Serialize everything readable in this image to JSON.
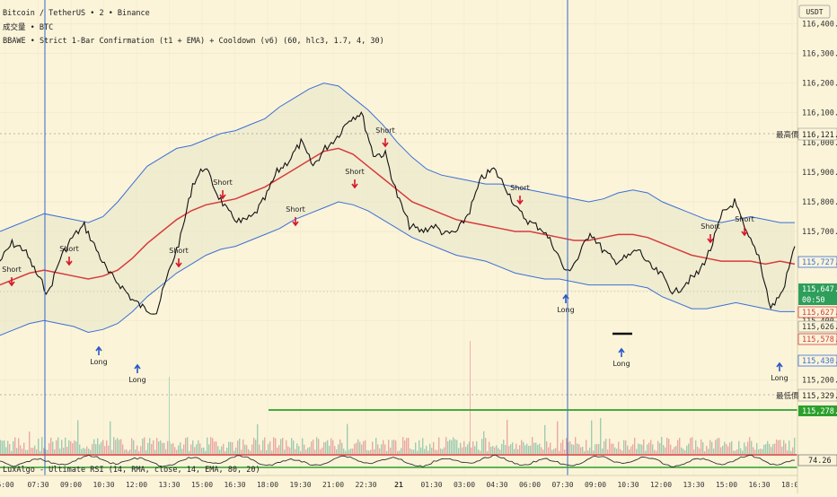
{
  "legend": {
    "symbol": "Bitcoin / TetherUS • 2 • Binance",
    "volume": "成交量 • BTC",
    "indicator": "BBAWE • Strict 1-Bar Confirmation (t1 + EMA) + Cooldown (v6) (60, hlc3, 1.7, 4, 30)"
  },
  "rsi_legend": "LuxAlgo - Ultimate RSI (14, RMA, close, 14, EMA, 80, 20)",
  "currency": "USDT",
  "price_axis": {
    "ticks": [
      "116,400.00",
      "116,300.00",
      "116,200.00",
      "116,100.00",
      "116,000.00",
      "115,900.00",
      "115,800.00",
      "115,700.00",
      "115,600.00",
      "115,500.00",
      "115,400.00",
      "115,200.00"
    ],
    "high_label": "最高價",
    "high_value": "116,121.81",
    "low_label": "最低價",
    "low_value": "115,329.03",
    "tags": [
      {
        "text": "115,727.53",
        "style": "upper"
      },
      {
        "text": "115,647.75",
        "style": "last"
      },
      {
        "text": "00:50",
        "style": "timer"
      },
      {
        "text": "115,627.21",
        "style": "ema"
      },
      {
        "text": "115,626.70",
        "style": "plain"
      },
      {
        "text": "115,578.93",
        "style": "ema"
      },
      {
        "text": "115,430.34",
        "style": "lower"
      },
      {
        "text": "115,278.05",
        "style": "line"
      }
    ],
    "rsi_value": "74.26"
  },
  "time_axis": [
    "6:00",
    "07:30",
    "09:00",
    "10:30",
    "12:00",
    "13:30",
    "15:00",
    "16:30",
    "18:00",
    "19:30",
    "21:00",
    "22:30",
    "21",
    "01:30",
    "03:00",
    "04:30",
    "06:00",
    "07:30",
    "09:00",
    "10:30",
    "12:00",
    "13:30",
    "15:00",
    "16:30",
    "18:00"
  ],
  "signals": [
    {
      "text": "Short",
      "type": "short"
    },
    {
      "text": "Short",
      "type": "short"
    },
    {
      "text": "Short",
      "type": "short"
    },
    {
      "text": "Short",
      "type": "short"
    },
    {
      "text": "Short",
      "type": "short"
    },
    {
      "text": "Short",
      "type": "short"
    },
    {
      "text": "Short",
      "type": "short"
    },
    {
      "text": "Short",
      "type": "short"
    },
    {
      "text": "Short",
      "type": "short"
    },
    {
      "text": "Short",
      "type": "short"
    },
    {
      "text": "Long",
      "type": "long"
    },
    {
      "text": "Long",
      "type": "long"
    },
    {
      "text": "Long",
      "type": "long"
    },
    {
      "text": "Long",
      "type": "long"
    },
    {
      "text": "Long",
      "type": "long"
    }
  ],
  "colors": {
    "background": "#fbf4d9",
    "band": "#3b6fd6",
    "ema": "#d63c3c",
    "green_line": "#2ca02c",
    "vline": "#3366cc",
    "last_price": "#2e9e5b"
  },
  "chart_data": {
    "type": "line",
    "ylim": [
      115150,
      116480
    ],
    "y_ticks": [
      116400,
      116300,
      116200,
      116100,
      116000,
      115900,
      115800,
      115700,
      115600,
      115500,
      115400,
      115200
    ],
    "x_labels": [
      "6:00",
      "07:30",
      "09:00",
      "10:30",
      "12:00",
      "13:30",
      "15:00",
      "16:30",
      "18:00",
      "19:30",
      "21:00",
      "22:30",
      "21",
      "01:30",
      "03:00",
      "04:30",
      "06:00",
      "07:30",
      "09:00",
      "10:30",
      "12:00",
      "13:30",
      "15:00",
      "16:30",
      "18:00"
    ],
    "series": [
      {
        "values": [
          115600,
          115660,
          115640,
          115560,
          115490,
          115610,
          115680,
          115720,
          115640,
          115560,
          115520,
          115470,
          115440,
          115430,
          115560,
          115680,
          115860,
          115920,
          115830,
          115760,
          115730,
          115750,
          115810,
          115900,
          115940,
          116000,
          115920,
          115980,
          116020,
          116080,
          116100,
          115960,
          115960,
          115820,
          115720,
          115700,
          115720,
          115690,
          115700,
          115770,
          115880,
          115910,
          115850,
          115770,
          115730,
          115710,
          115650,
          115560,
          115610,
          115700,
          115640,
          115600,
          115610,
          115640,
          115580,
          115550,
          115490,
          115530,
          115560,
          115640,
          115760,
          115800,
          115690,
          115620,
          115440,
          115500,
          115650
        ]
      },
      {
        "values": [
          115520,
          115540,
          115560,
          115570,
          115560,
          115550,
          115540,
          115550,
          115570,
          115610,
          115660,
          115700,
          115740,
          115770,
          115790,
          115800,
          115810,
          115830,
          115850,
          115880,
          115910,
          115940,
          115970,
          115980,
          115960,
          115920,
          115880,
          115840,
          115800,
          115780,
          115760,
          115740,
          115730,
          115720,
          115710,
          115700,
          115700,
          115690,
          115680,
          115670,
          115670,
          115680,
          115690,
          115690,
          115680,
          115660,
          115640,
          115620,
          115610,
          115600,
          115600,
          115600,
          115590,
          115600,
          115590
        ]
      },
      {
        "values": [
          115700,
          115720,
          115740,
          115760,
          115750,
          115740,
          115730,
          115750,
          115800,
          115860,
          115920,
          115950,
          115980,
          115990,
          116010,
          116030,
          116040,
          116060,
          116080,
          116120,
          116150,
          116180,
          116200,
          116190,
          116150,
          116110,
          116060,
          116000,
          115950,
          115910,
          115890,
          115880,
          115870,
          115860,
          115860,
          115850,
          115840,
          115830,
          115820,
          115810,
          115800,
          115810,
          115830,
          115840,
          115830,
          115800,
          115780,
          115760,
          115740,
          115730,
          115740,
          115750,
          115740,
          115730,
          115730
        ]
      },
      {
        "values": [
          115350,
          115370,
          115390,
          115400,
          115390,
          115380,
          115360,
          115370,
          115390,
          115430,
          115480,
          115520,
          115560,
          115590,
          115620,
          115640,
          115650,
          115670,
          115690,
          115710,
          115740,
          115760,
          115780,
          115800,
          115790,
          115770,
          115740,
          115710,
          115680,
          115660,
          115640,
          115620,
          115610,
          115600,
          115580,
          115560,
          115550,
          115540,
          115540,
          115530,
          115520,
          115520,
          115520,
          115520,
          115510,
          115480,
          115460,
          115440,
          115440,
          115450,
          115460,
          115450,
          115440,
          115430,
          115430
        ]
      }
    ]
  }
}
